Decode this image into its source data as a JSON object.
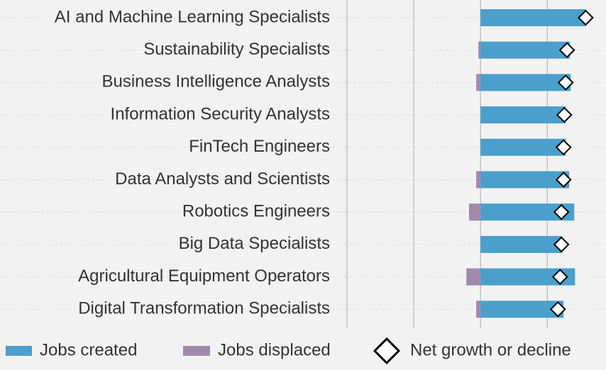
{
  "chart_data": {
    "type": "bar",
    "categories": [
      "AI and Machine Learning Specialists",
      "Sustainability Specialists",
      "Business Intelligence Analysts",
      "Information Security Analysts",
      "FinTech Engineers",
      "Data Analysts and Scientists",
      "Robotics Engineers",
      "Big Data Specialists",
      "Agricultural Equipment Operators",
      "Digital Transformation Specialists"
    ],
    "series": [
      {
        "name": "Jobs created",
        "color": "#4a9fcb",
        "values": [
          39.4,
          33.5,
          33.8,
          31.9,
          31.9,
          33.2,
          35.1,
          30.6,
          35.4,
          31.1
        ]
      },
      {
        "name": "Jobs displaced",
        "color": "#a08aab",
        "values": [
          0,
          -0.8,
          -1.6,
          0,
          0,
          -1.6,
          -4.3,
          0,
          -5.3,
          -1.6
        ]
      },
      {
        "name": "Net growth or decline",
        "color": "#ffffff",
        "values": [
          39.4,
          32.4,
          31.9,
          31.4,
          31.1,
          31.1,
          30.3,
          30.3,
          29.8,
          29.0
        ]
      }
    ],
    "xlim": [
      -50,
      47
    ],
    "xticks": [
      -50,
      -25,
      0,
      25
    ],
    "grid": true
  }
}
